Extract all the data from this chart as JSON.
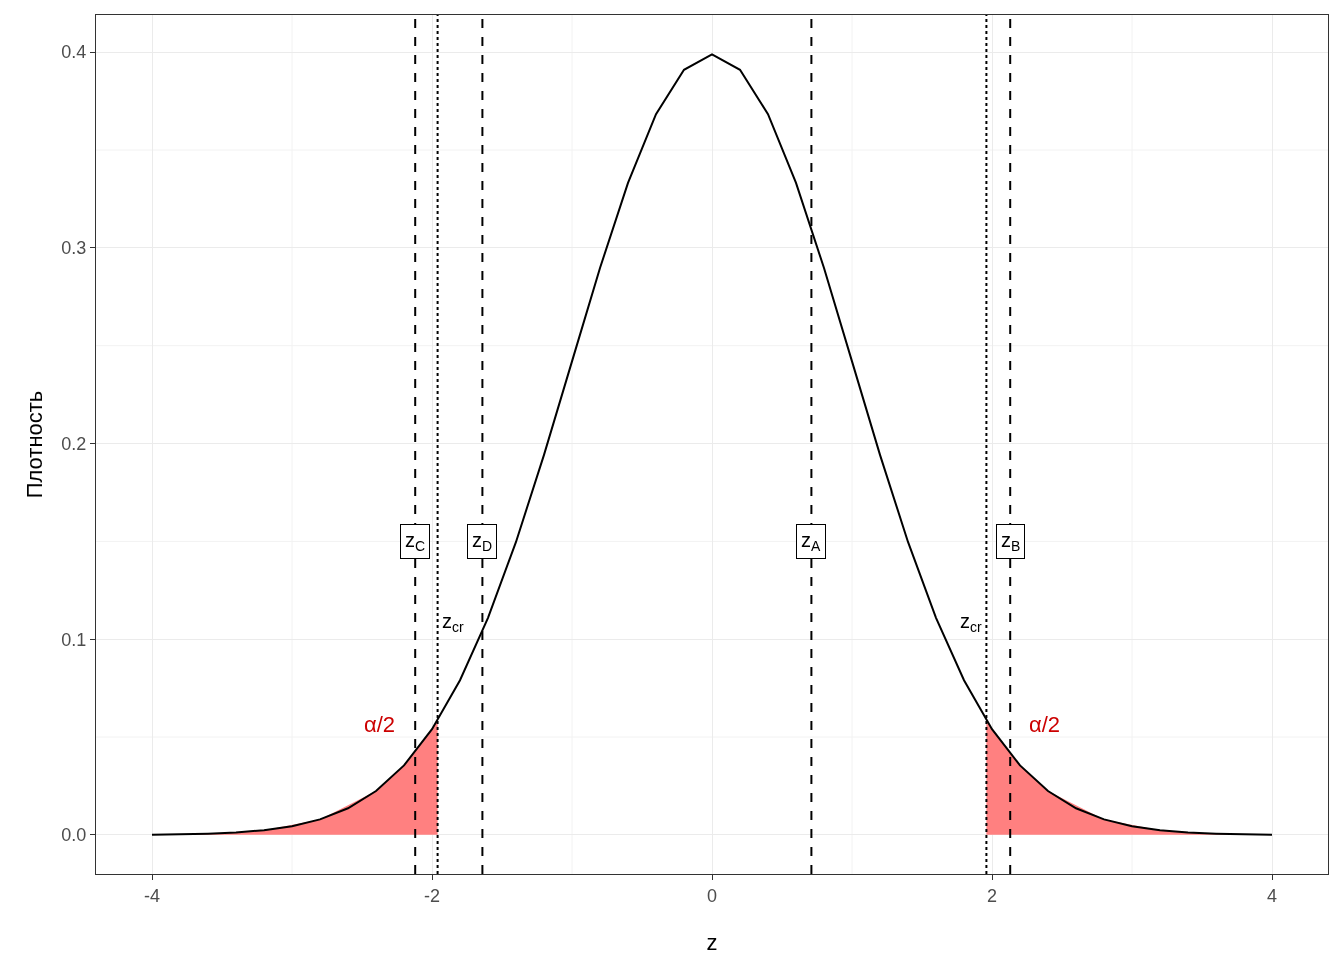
{
  "chart_data": {
    "type": "line",
    "xlabel": "z",
    "ylabel": "Плотность",
    "xlim": [
      -4.4,
      4.4
    ],
    "ylim": [
      -0.02,
      0.419
    ],
    "xticks": [
      -4,
      -2,
      0,
      2,
      4
    ],
    "yticks": [
      {
        "value": 0,
        "label": "0.0"
      },
      {
        "value": 0.1,
        "label": "0.1"
      },
      {
        "value": 0.2,
        "label": "0.2"
      },
      {
        "value": 0.3,
        "label": "0.3"
      },
      {
        "value": 0.4,
        "label": "0.4"
      }
    ],
    "grid": true,
    "marker": "none",
    "series": [
      {
        "type": "area",
        "color": "#ff8080",
        "x": [
          -4,
          -3.6,
          -3.2,
          -2.8,
          -2.4,
          -2.2,
          -2,
          -1.96
        ],
        "values": [
          0.0001,
          0.0006,
          0.0024,
          0.0079,
          0.0224,
          0.0355,
          0.054,
          0.0584
        ]
      },
      {
        "type": "area",
        "color": "#ff8080",
        "x": [
          1.96,
          2,
          2.2,
          2.4,
          2.8,
          3.2,
          3.6,
          4
        ],
        "values": [
          0.0584,
          0.054,
          0.0355,
          0.0224,
          0.0079,
          0.0024,
          0.0006,
          0.0001
        ]
      },
      {
        "color": "#000000",
        "line_style": "solid",
        "x": [
          -4,
          -3.8,
          -3.6,
          -3.4,
          -3.2,
          -3,
          -2.8,
          -2.6,
          -2.4,
          -2.2,
          -2,
          -1.8,
          -1.6,
          -1.4,
          -1.2,
          -1,
          -0.8,
          -0.6,
          -0.4,
          -0.2,
          0,
          0.2,
          0.4,
          0.6,
          0.8,
          1,
          1.2,
          1.4,
          1.6,
          1.8,
          2,
          2.2,
          2.4,
          2.6,
          2.8,
          3,
          3.2,
          3.4,
          3.6,
          3.8,
          4
        ],
        "values": [
          0.0001,
          0.0003,
          0.0006,
          0.0012,
          0.0024,
          0.0044,
          0.0079,
          0.0136,
          0.0224,
          0.0355,
          0.054,
          0.079,
          0.1109,
          0.1497,
          0.1942,
          0.242,
          0.2897,
          0.3332,
          0.3683,
          0.391,
          0.3989,
          0.391,
          0.3683,
          0.3332,
          0.2897,
          0.242,
          0.1942,
          0.1497,
          0.1109,
          0.079,
          0.054,
          0.0355,
          0.0224,
          0.0136,
          0.0079,
          0.0044,
          0.0024,
          0.0012,
          0.0006,
          0.0003,
          0.0001
        ]
      }
    ],
    "ref_lines": [
      {
        "axis": "x",
        "value": -2.12,
        "label": "z$_{C}$",
        "line_style": "dashed",
        "color": "#000000"
      },
      {
        "axis": "x",
        "value": -1.96,
        "label": "z$_{cr}$",
        "line_style": "dotted",
        "color": "#000000"
      },
      {
        "axis": "x",
        "value": -1.64,
        "label": "z$_{D}$",
        "line_style": "dashed",
        "color": "#000000"
      },
      {
        "axis": "x",
        "value": 0.71,
        "label": "z$_{A}$",
        "line_style": "dashed",
        "color": "#000000"
      },
      {
        "axis": "x",
        "value": 1.96,
        "label": "z$_{cr}$",
        "line_style": "dotted",
        "color": "#000000"
      },
      {
        "axis": "x",
        "value": 2.13,
        "label": "z$_{B}$",
        "line_style": "dashed",
        "color": "#000000"
      }
    ],
    "annotations": [
      "α/2",
      "α/2"
    ]
  }
}
